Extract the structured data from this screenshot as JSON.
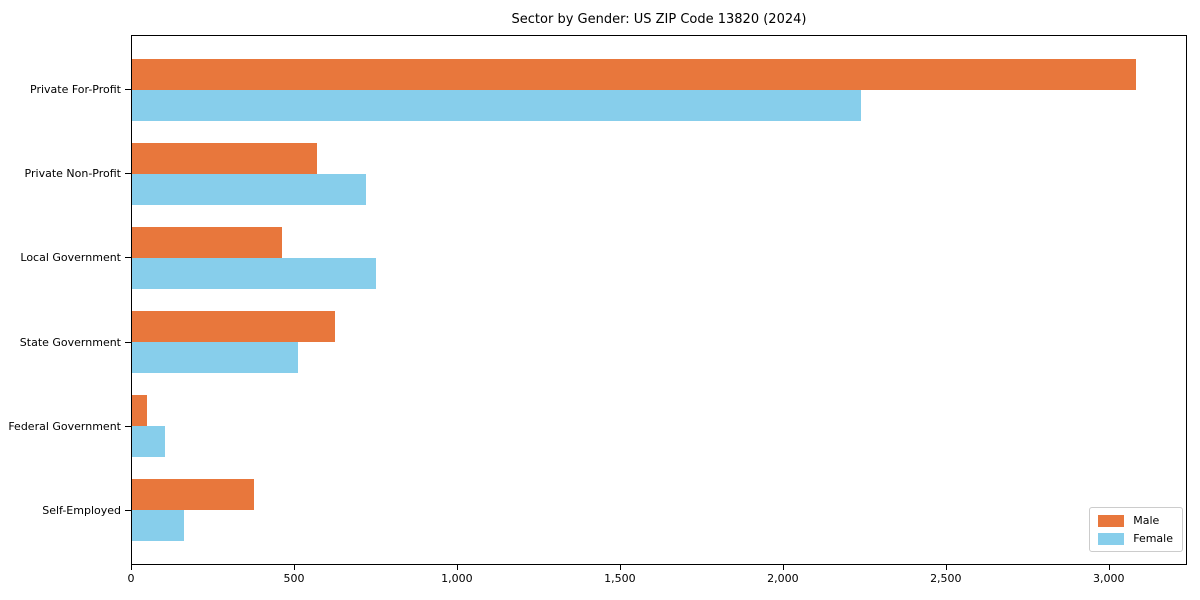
{
  "chart_data": {
    "type": "bar",
    "orientation": "horizontal",
    "title": "Sector by Gender: US ZIP Code 13820 (2024)",
    "categories": [
      "Private For-Profit",
      "Private Non-Profit",
      "Local Government",
      "State Government",
      "Federal Government",
      "Self-Employed"
    ],
    "series": [
      {
        "name": "Male",
        "color": "#e8773c",
        "values": [
          3085,
          570,
          460,
          625,
          45,
          375
        ]
      },
      {
        "name": "Female",
        "color": "#87ceeb",
        "values": [
          2240,
          720,
          750,
          510,
          100,
          160
        ]
      }
    ],
    "xlim": [
      0,
      3240
    ],
    "xticks": {
      "values": [
        0,
        500,
        1000,
        1500,
        2000,
        2500,
        3000
      ],
      "labels": [
        "0",
        "500",
        "1,000",
        "1,500",
        "2,000",
        "2,500",
        "3,000"
      ]
    },
    "grid": false,
    "legend": {
      "position": "lower right",
      "entries": [
        "Male",
        "Female"
      ]
    },
    "colors": {
      "male": "#e8773c",
      "female": "#87ceeb",
      "spine": "#000000",
      "legend_border": "#cccccc"
    }
  }
}
